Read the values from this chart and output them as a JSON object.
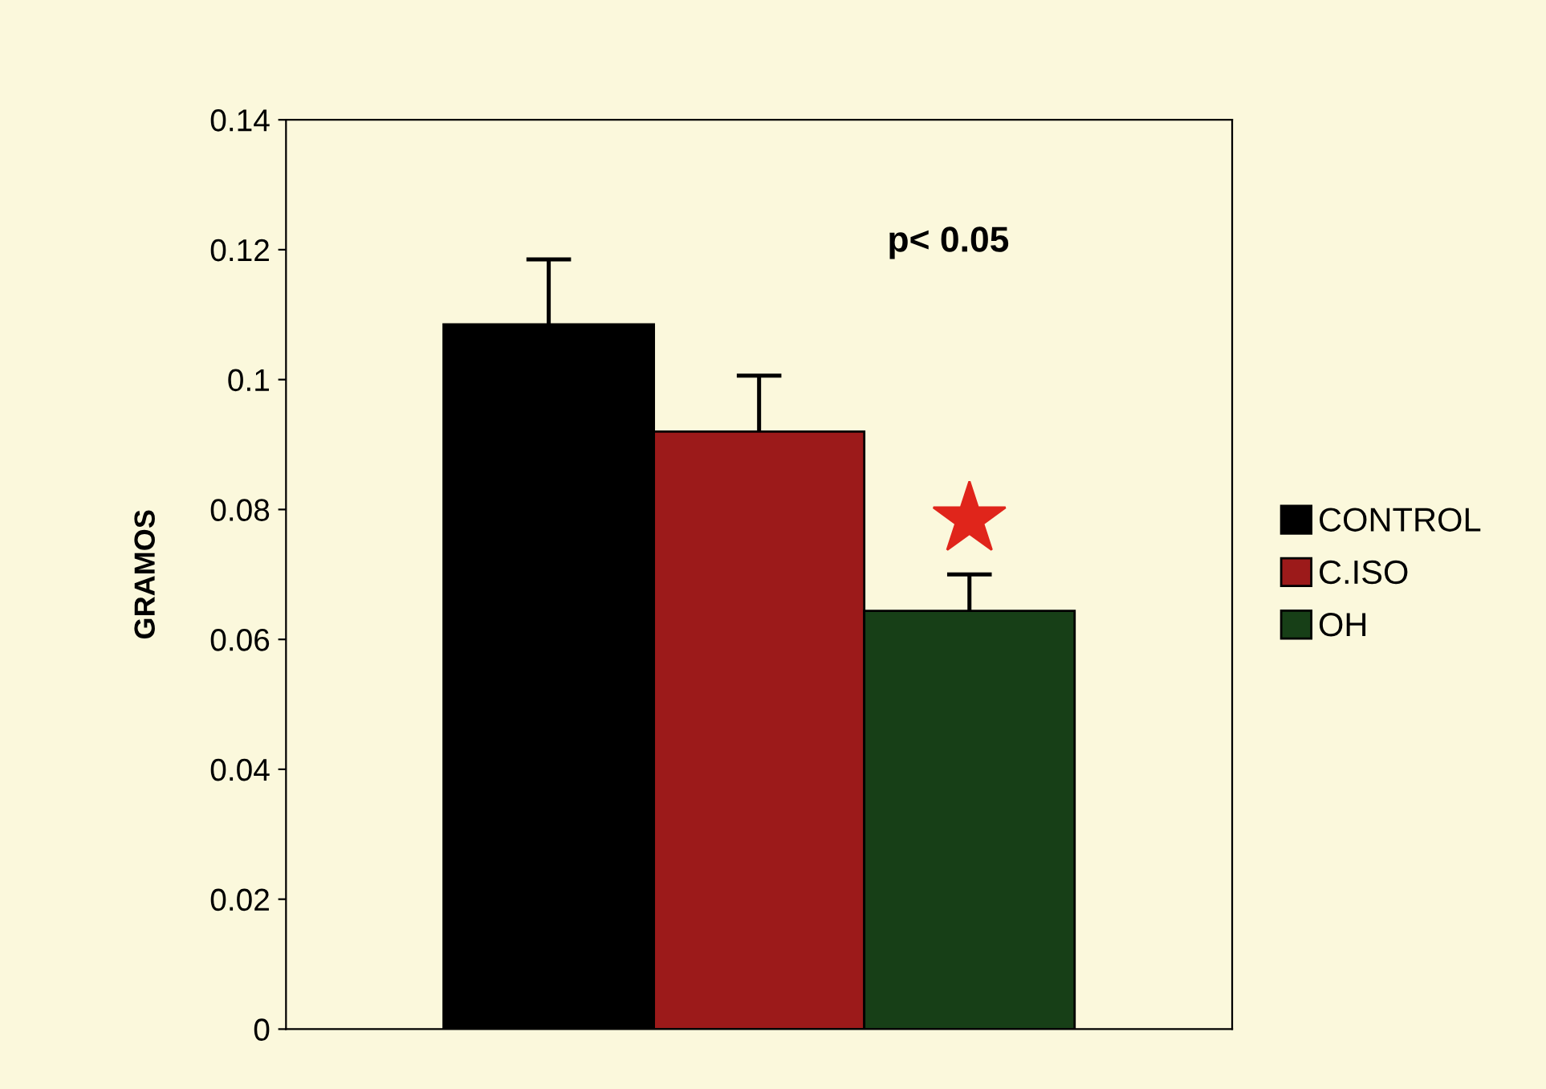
{
  "chart_data": {
    "type": "bar",
    "ylabel": "GRAMOS",
    "categories": [
      null
    ],
    "series": [
      {
        "name": "CONTROL",
        "color": "#000000",
        "values": [
          0.1085
        ],
        "errors": [
          [
            0.1085,
            0.1185
          ]
        ]
      },
      {
        "name": "C.ISO",
        "color": "#9c1a1a",
        "values": [
          0.092
        ],
        "errors": [
          [
            0.092,
            0.1006
          ]
        ]
      },
      {
        "name": "OH",
        "color": "#173f17",
        "values": [
          0.0644
        ],
        "errors": [
          [
            0.0644,
            0.07
          ]
        ]
      }
    ],
    "ylim": [
      0,
      0.14
    ],
    "yticks": [
      0,
      0.02,
      0.04,
      0.06,
      0.08,
      0.1,
      0.12,
      0.14
    ],
    "annotations": [
      "p< 0.05"
    ],
    "grid": false,
    "legend": "right"
  }
}
